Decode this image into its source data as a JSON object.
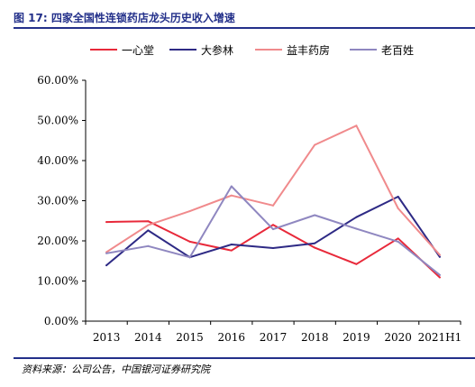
{
  "header": {
    "title": "图 17:  四家全国性连锁药店龙头历史收入增速"
  },
  "footer": {
    "source": "资料来源：公司公告，中国银河证券研究院"
  },
  "colors": {
    "accent": "#23308a",
    "series": [
      "#e8293a",
      "#2e2a85",
      "#f08a8c",
      "#8f87c0"
    ]
  },
  "chart_data": {
    "type": "line",
    "title": "",
    "xlabel": "",
    "ylabel": "",
    "categories": [
      "2013",
      "2014",
      "2015",
      "2016",
      "2017",
      "2018",
      "2019",
      "2020",
      "2021H1"
    ],
    "ylim": [
      0,
      60
    ],
    "y_ticks": [
      "0.00%",
      "10.00%",
      "20.00%",
      "30.00%",
      "40.00%",
      "50.00%",
      "60.00%"
    ],
    "legend_position": "top",
    "grid": false,
    "series": [
      {
        "name": "一心堂",
        "values": [
          24.7,
          24.9,
          19.8,
          17.6,
          24.0,
          18.3,
          14.2,
          20.6,
          10.9
        ]
      },
      {
        "name": "大参林",
        "values": [
          13.9,
          22.6,
          15.9,
          19.1,
          18.2,
          19.4,
          25.9,
          31.0,
          16.0
        ]
      },
      {
        "name": "益丰药房",
        "values": [
          17.2,
          23.9,
          27.4,
          31.3,
          28.8,
          43.9,
          48.7,
          28.1,
          16.5
        ]
      },
      {
        "name": "老百姓",
        "values": [
          16.9,
          18.7,
          15.9,
          33.6,
          22.9,
          26.4,
          23.0,
          19.8,
          11.5
        ]
      }
    ]
  }
}
